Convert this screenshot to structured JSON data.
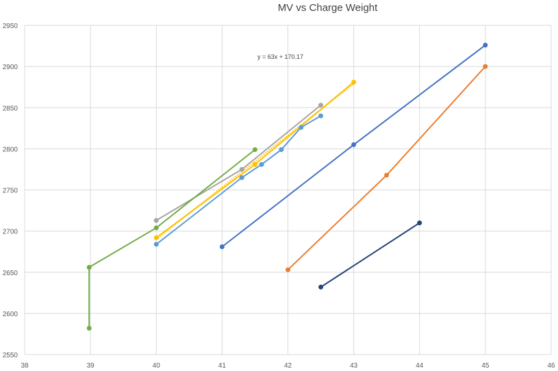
{
  "chart_data": {
    "type": "scatter",
    "title": "MV vs Charge Weight",
    "xlabel": "",
    "ylabel": "",
    "xlim": [
      38,
      46
    ],
    "ylim": [
      2550,
      2950
    ],
    "x_ticks": [
      38,
      39,
      40,
      41,
      42,
      43,
      44,
      45,
      46
    ],
    "y_ticks": [
      2550,
      2600,
      2650,
      2700,
      2750,
      2800,
      2850,
      2900,
      2950
    ],
    "grid": true,
    "annotation": "y = 63x + 170.17",
    "series": [
      {
        "color": "#4472C4",
        "points": [
          [
            41.0,
            2681
          ],
          [
            43.0,
            2805
          ],
          [
            45.0,
            2926
          ]
        ]
      },
      {
        "color": "#ED7D31",
        "points": [
          [
            42.0,
            2653
          ],
          [
            43.5,
            2768
          ],
          [
            45.0,
            2900
          ]
        ]
      },
      {
        "color": "#A5A5A5",
        "points": [
          [
            40.0,
            2713
          ],
          [
            41.3,
            2775
          ],
          [
            42.5,
            2853
          ]
        ]
      },
      {
        "color": "#FFC000",
        "points": [
          [
            40.0,
            2692
          ],
          [
            41.5,
            2781
          ],
          [
            43.0,
            2881
          ]
        ]
      },
      {
        "color": "#5B9BD5",
        "points": [
          [
            40.0,
            2684
          ],
          [
            41.3,
            2765
          ],
          [
            41.6,
            2781
          ],
          [
            41.9,
            2799
          ],
          [
            42.2,
            2826
          ],
          [
            42.5,
            2840
          ]
        ]
      },
      {
        "color": "#70AD47",
        "points": [
          [
            38.98,
            2582
          ],
          [
            38.98,
            2656
          ],
          [
            40.0,
            2704
          ],
          [
            41.5,
            2799
          ]
        ]
      },
      {
        "color": "#264478",
        "points": [
          [
            42.5,
            2632
          ],
          [
            44.0,
            2710
          ]
        ]
      }
    ],
    "trendline": {
      "series_color": "#FFC000",
      "slope": 63,
      "intercept": 170.17,
      "x_range": [
        40.0,
        43.0
      ]
    }
  }
}
